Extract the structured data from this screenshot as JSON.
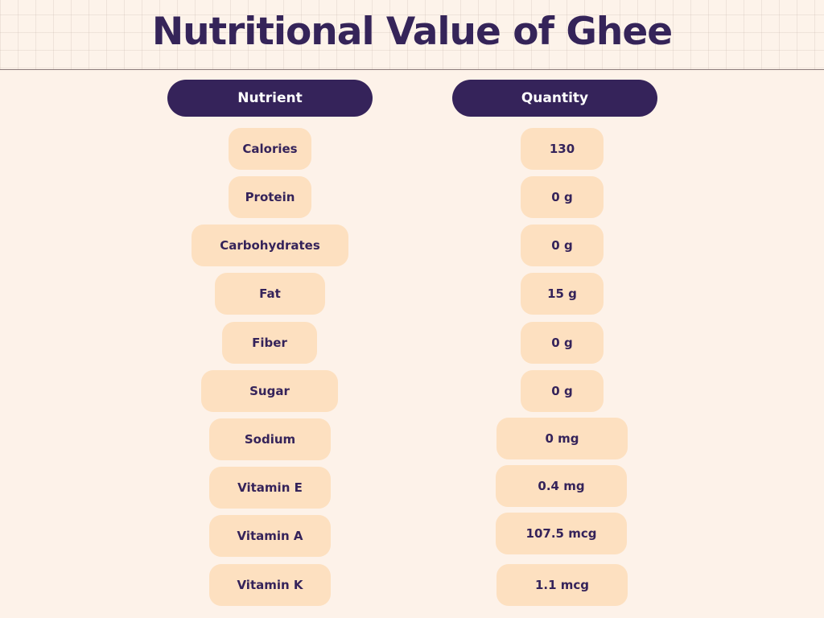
{
  "title": "Nutritional Value of Ghee",
  "columns": {
    "nutrient": "Nutrient",
    "quantity": "Quantity"
  },
  "rows": [
    {
      "nutrient": "Calories",
      "quantity": "130"
    },
    {
      "nutrient": "Protein",
      "quantity": "0 g"
    },
    {
      "nutrient": "Carbohydrates",
      "quantity": "0 g"
    },
    {
      "nutrient": "Fat",
      "quantity": "15 g"
    },
    {
      "nutrient": "Fiber",
      "quantity": "0 g"
    },
    {
      "nutrient": "Sugar",
      "quantity": "0 g"
    },
    {
      "nutrient": "Sodium",
      "quantity": "0 mg"
    },
    {
      "nutrient": "Vitamin E",
      "quantity": "0.4 mg"
    },
    {
      "nutrient": "Vitamin A",
      "quantity": "107.5 mcg"
    },
    {
      "nutrient": "Vitamin K",
      "quantity": "1.1 mcg"
    }
  ],
  "colors": {
    "background": "#fdf2e9",
    "header_pill": "#35235a",
    "cell_pill": "#fde0c0",
    "text_dark": "#35235a"
  }
}
